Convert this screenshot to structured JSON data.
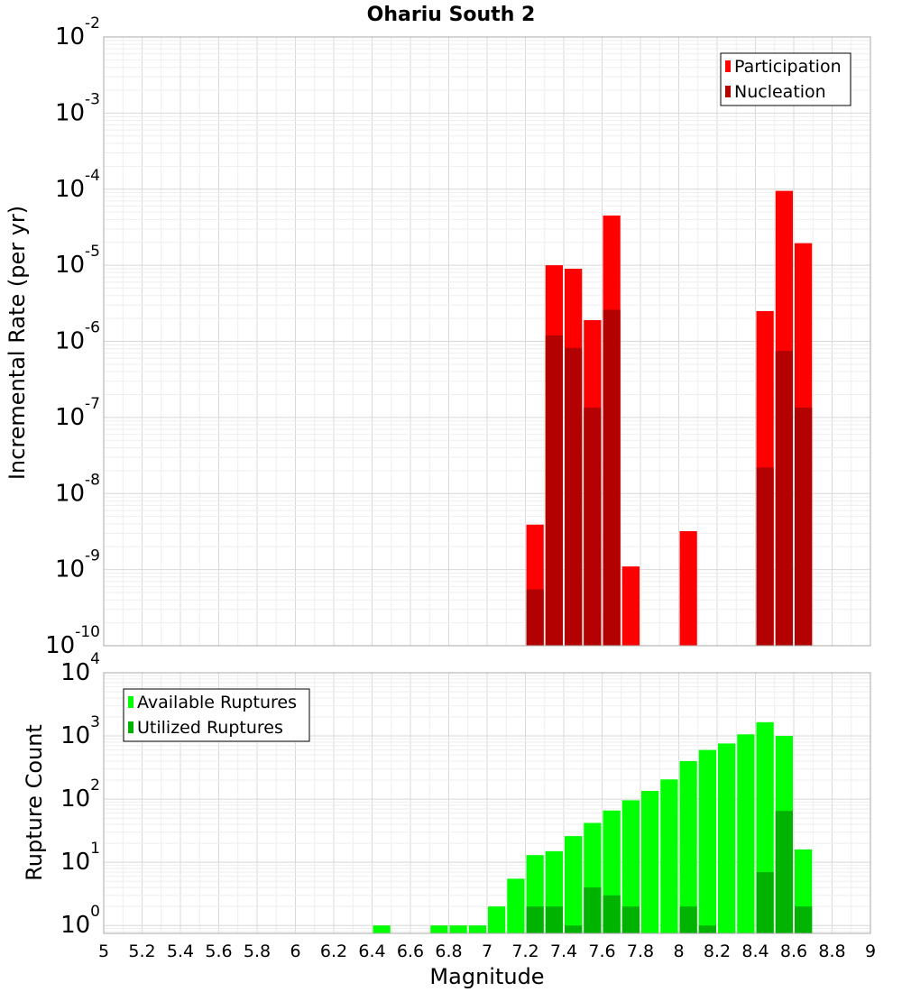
{
  "chart_data": [
    {
      "type": "bar",
      "title": "Ohariu South 2",
      "xlabel": "",
      "ylabel": "Incremental Rate (per yr)",
      "y_scale": "log",
      "ylim": [
        1e-10,
        0.01
      ],
      "xlim": [
        5,
        9
      ],
      "y_tick_exponents": [
        "-10",
        "-9",
        "-8",
        "-7",
        "-6",
        "-5",
        "-4",
        "-3",
        "-2"
      ],
      "y_tick_base": "10",
      "bar_width": 0.1,
      "legend": {
        "position": "top-right",
        "entries": [
          "Participation",
          "Nucleation"
        ]
      },
      "grid": true,
      "series": [
        {
          "name": "Participation",
          "color": "#ff0000",
          "x": [
            7.25,
            7.35,
            7.45,
            7.55,
            7.65,
            7.75,
            8.05,
            8.45,
            8.55,
            8.65
          ],
          "values": [
            3.9e-09,
            1e-05,
            9e-06,
            1.9e-06,
            4.5e-05,
            1.1e-09,
            3.2e-09,
            2.5e-06,
            9.5e-05,
            1.95e-05
          ]
        },
        {
          "name": "Nucleation",
          "color": "#b30000",
          "x": [
            7.25,
            7.35,
            7.45,
            7.55,
            7.65,
            8.45,
            8.55,
            8.65
          ],
          "values": [
            5.5e-10,
            1.2e-06,
            8.2e-07,
            1.35e-07,
            2.6e-06,
            2.2e-08,
            7.5e-07,
            1.35e-07
          ]
        }
      ]
    },
    {
      "type": "bar",
      "title": "",
      "xlabel": "Magnitude",
      "ylabel": "Rupture Count",
      "y_scale": "log",
      "ylim": [
        0.75,
        10000
      ],
      "xlim": [
        5,
        9
      ],
      "y_tick_exponents": [
        "0",
        "1",
        "2",
        "3",
        "4"
      ],
      "y_tick_base": "10",
      "x_ticks": [
        "5",
        "5.2",
        "5.4",
        "5.6",
        "5.8",
        "6",
        "6.2",
        "6.4",
        "6.6",
        "6.8",
        "7",
        "7.2",
        "7.4",
        "7.6",
        "7.8",
        "8",
        "8.2",
        "8.4",
        "8.6",
        "8.8",
        "9"
      ],
      "bar_width": 0.1,
      "legend": {
        "position": "top-left",
        "entries": [
          "Available Ruptures",
          "Utilized Ruptures"
        ]
      },
      "grid": true,
      "series": [
        {
          "name": "Available Ruptures",
          "color": "#00ff00",
          "x": [
            6.45,
            6.75,
            6.85,
            6.95,
            7.05,
            7.15,
            7.25,
            7.35,
            7.45,
            7.55,
            7.65,
            7.75,
            7.85,
            7.95,
            8.05,
            8.15,
            8.25,
            8.35,
            8.45,
            8.55,
            8.65
          ],
          "values": [
            1,
            1,
            1,
            1,
            2,
            5.5,
            13,
            15,
            26,
            42,
            66,
            96,
            135,
            205,
            400,
            600,
            760,
            1060,
            1650,
            1000,
            16
          ]
        },
        {
          "name": "Utilized Ruptures",
          "color": "#00b300",
          "x": [
            7.25,
            7.35,
            7.45,
            7.55,
            7.65,
            7.75,
            8.05,
            8.15,
            8.45,
            8.55,
            8.65
          ],
          "values": [
            2,
            2,
            1,
            4,
            3,
            2,
            2,
            1,
            7,
            65,
            2
          ]
        }
      ]
    }
  ]
}
